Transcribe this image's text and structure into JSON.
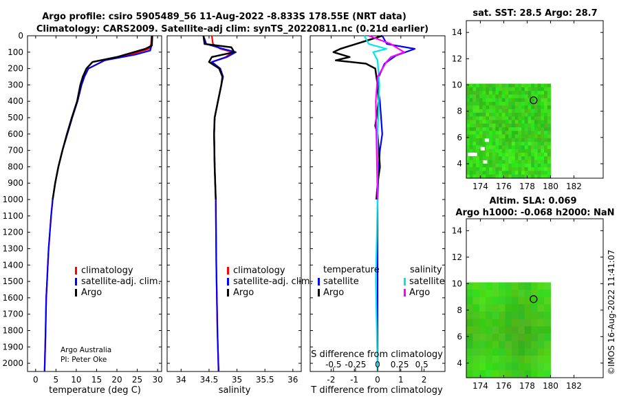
{
  "titles": {
    "line1": "Argo profile: csiro 5905489_56 11-Aug-2022 -8.833S 178.55E (NRT data)",
    "line2": "Climatology: CARS2009. Satellite-adj clim: synTS_20220811.nc (0.21d earlier)",
    "sst": "sat. SST: 28.5 Argo: 28.7",
    "sla1": "Altim. SLA: 0.069",
    "sla2": "Argo h1000: -0.068 h2000: NaN"
  },
  "watermark": "©IMOS 16-Aug-2022 11:41:07",
  "credit": {
    "line1": "Argo Australia",
    "line2": "PI: Peter Oke"
  },
  "colors": {
    "climatology": "#ff0000",
    "satellite": "#0000ff",
    "argo": "#000000",
    "sat_sal": "#00e5ee",
    "argo_sal": "#ff00ff",
    "map_green": "#33cc33"
  },
  "chart_data": [
    {
      "type": "line",
      "name": "temperature",
      "xlabel": "temperature (deg C)",
      "ylabel": "",
      "xlim": [
        -2,
        31
      ],
      "ylim": [
        0,
        2050
      ],
      "xticks": [
        0,
        5,
        10,
        15,
        20,
        25,
        30
      ],
      "yticks": [
        0,
        100,
        200,
        300,
        400,
        500,
        600,
        700,
        800,
        900,
        1000,
        1100,
        1200,
        1300,
        1400,
        1500,
        1600,
        1700,
        1800,
        1900,
        2000
      ],
      "legend": [
        "climatology",
        "satellite-adj. clim.",
        "Argo"
      ],
      "series": [
        {
          "name": "climatology",
          "color": "#ff0000",
          "x": [
            28.5,
            28.4,
            28.0,
            24,
            17,
            13,
            12,
            11.3,
            10.3,
            9.0,
            7.8,
            6.6,
            5.6,
            4.8,
            4.2,
            3.8,
            3.5,
            3.2,
            3.0,
            2.8,
            2.6,
            2.45,
            2.3,
            2.2
          ],
          "y": [
            0,
            50,
            80,
            110,
            150,
            200,
            250,
            300,
            400,
            500,
            600,
            700,
            800,
            900,
            1000,
            1100,
            1200,
            1300,
            1400,
            1500,
            1600,
            1800,
            1950,
            2050
          ]
        },
        {
          "name": "satellite-adj. clim.",
          "color": "#0000ff",
          "x": [
            28.7,
            28.6,
            28.2,
            24.5,
            17,
            13,
            12,
            11.3,
            10.3,
            9.0,
            7.8,
            6.6,
            5.6,
            4.8,
            4.2,
            3.8,
            3.5,
            3.2,
            3.0,
            2.8,
            2.6,
            2.45,
            2.3,
            2.2
          ],
          "y": [
            0,
            50,
            90,
            115,
            150,
            200,
            250,
            300,
            400,
            500,
            600,
            700,
            800,
            900,
            1000,
            1100,
            1200,
            1300,
            1400,
            1500,
            1600,
            1800,
            1950,
            2050
          ]
        },
        {
          "name": "Argo",
          "color": "#000000",
          "x": [
            28.7,
            28.6,
            27.0,
            20,
            14,
            12.5,
            11.6,
            11.0,
            10.2,
            8.9,
            7.7,
            6.6,
            5.6,
            4.8,
            4.2
          ],
          "y": [
            0,
            60,
            80,
            130,
            160,
            200,
            250,
            300,
            400,
            500,
            600,
            700,
            800,
            900,
            1000
          ]
        }
      ]
    },
    {
      "type": "line",
      "name": "salinity",
      "xlabel": "salinity",
      "xlim": [
        33.75,
        36.15
      ],
      "ylim": [
        0,
        2050
      ],
      "xticks": [
        34,
        34.5,
        35,
        35.5,
        36
      ],
      "legend": [
        "climatology",
        "satellite-adj. clim.",
        "Argo"
      ],
      "series": [
        {
          "name": "climatology",
          "color": "#ff0000",
          "x": [
            34.55,
            34.57,
            34.7,
            34.92,
            34.8,
            34.55,
            34.7,
            34.75,
            34.72,
            34.66,
            34.6,
            34.59,
            34.6,
            34.62,
            34.63,
            34.65,
            34.67
          ],
          "y": [
            0,
            50,
            80,
            100,
            130,
            160,
            200,
            250,
            300,
            400,
            500,
            600,
            800,
            1000,
            1400,
            1800,
            2050
          ]
        },
        {
          "name": "satellite-adj. clim.",
          "color": "#0000ff",
          "x": [
            34.4,
            34.45,
            34.75,
            34.98,
            34.82,
            34.55,
            34.7,
            34.75,
            34.72,
            34.66,
            34.6,
            34.59,
            34.6,
            34.62,
            34.63,
            34.65,
            34.67
          ],
          "y": [
            0,
            50,
            80,
            100,
            130,
            160,
            200,
            250,
            300,
            400,
            500,
            600,
            800,
            1000,
            1400,
            1800,
            2050
          ]
        },
        {
          "name": "Argo",
          "color": "#000000",
          "x": [
            34.4,
            34.42,
            34.9,
            34.95,
            34.55,
            34.5,
            34.68,
            34.74,
            34.72,
            34.66,
            34.6,
            34.59,
            34.6,
            34.62
          ],
          "y": [
            0,
            50,
            70,
            100,
            130,
            160,
            200,
            250,
            300,
            400,
            500,
            600,
            800,
            1000
          ]
        }
      ]
    },
    {
      "type": "line",
      "name": "differences",
      "xlabel": "T difference from climatology",
      "xlabel_top": "S difference from climatology",
      "xlim": [
        -2.9,
        2.9
      ],
      "ylim": [
        0,
        2050
      ],
      "xticks": [
        -2,
        -1,
        0,
        1,
        2
      ],
      "xticks_s_labels": [
        "-0.5",
        "-0.25",
        "0",
        "0.25",
        "0.5"
      ],
      "xticks_s_values": [
        -0.5,
        -0.25,
        0,
        0.25,
        0.5
      ],
      "legend_headers": [
        "temperature",
        "salinity"
      ],
      "legend": [
        "satellite",
        "Argo",
        "satellite",
        "Argo"
      ],
      "series": [
        {
          "name": "T satellite",
          "color": "#0000ff",
          "x": [
            0.2,
            0.4,
            1.6,
            0.8,
            0.3,
            0.05,
            0.0,
            0.1,
            0.15,
            0.2,
            0.1,
            0.05,
            0.0,
            0.0
          ],
          "y": [
            0,
            50,
            80,
            120,
            170,
            250,
            300,
            400,
            500,
            600,
            700,
            800,
            1000,
            2050
          ]
        },
        {
          "name": "T Argo",
          "color": "#000000",
          "x": [
            0.2,
            -1.6,
            -1.9,
            -1.2,
            -1.8,
            -0.5,
            -0.1,
            0.0,
            0.05,
            -0.1,
            0.0,
            0.1,
            0.0,
            -0.05
          ],
          "y": [
            0,
            80,
            100,
            130,
            150,
            170,
            200,
            300,
            400,
            550,
            600,
            800,
            900,
            1000
          ]
        },
        {
          "name": "S satellite",
          "color": "#00e5ee",
          "x": [
            -0.15,
            -0.1,
            0.1,
            -0.05,
            0.0,
            0.02,
            0.0,
            0.0,
            -0.02,
            0.0
          ],
          "y": [
            0,
            50,
            80,
            100,
            150,
            300,
            600,
            1000,
            1500,
            2050
          ]
        },
        {
          "name": "S Argo",
          "color": "#ff00ff",
          "x": [
            -0.1,
            0.15,
            0.3,
            0.15,
            0.1,
            0.0,
            -0.02,
            0.0
          ],
          "y": [
            0,
            50,
            100,
            130,
            160,
            250,
            400,
            1000
          ]
        }
      ]
    },
    {
      "type": "heatmap",
      "name": "sst map",
      "title": "sat. SST: 28.5 Argo: 28.7",
      "xlim": [
        172.8,
        184.5
      ],
      "ylim": [
        2.9,
        14.9
      ],
      "xticks": [
        174,
        176,
        178,
        180,
        182
      ],
      "yticks": [
        4,
        6,
        8,
        10,
        12,
        14
      ],
      "data_extent": {
        "lon": [
          172.8,
          180
        ],
        "lat": [
          2.9,
          10.1
        ]
      },
      "float": {
        "lon": 178.55,
        "lat": 8.833
      }
    },
    {
      "type": "heatmap",
      "name": "sla map",
      "title": "Altim. SLA: 0.069",
      "xlim": [
        172.8,
        184.5
      ],
      "ylim": [
        2.9,
        14.9
      ],
      "xticks": [
        174,
        176,
        178,
        180,
        182
      ],
      "yticks": [
        4,
        6,
        8,
        10,
        12,
        14
      ],
      "data_extent": {
        "lon": [
          172.8,
          180
        ],
        "lat": [
          2.9,
          10.1
        ]
      },
      "float": {
        "lon": 178.55,
        "lat": 8.833
      }
    }
  ]
}
